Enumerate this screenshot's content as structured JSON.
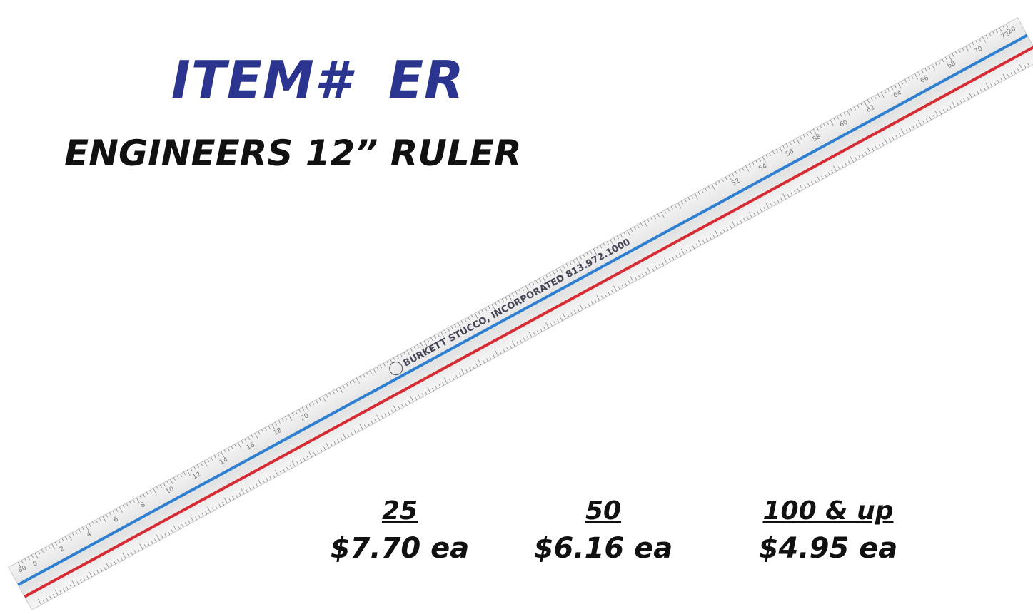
{
  "header": {
    "title": "ITEM#  ER",
    "subtitle": "ENGINEERS 12” RULER"
  },
  "ruler": {
    "imprint": "BURKETT STUCCO, INCORPORATED  813.972.1000",
    "end_labels": [
      "60",
      "20"
    ],
    "top_scale": [
      0,
      2,
      4,
      6,
      8,
      10,
      12,
      14,
      16,
      18,
      20,
      52,
      54,
      56,
      58,
      60,
      62,
      64,
      66,
      68,
      70,
      72
    ]
  },
  "pricing": [
    {
      "quantity": "25",
      "price": "$7.70 ea"
    },
    {
      "quantity": "50",
      "price": "$6.16 ea"
    },
    {
      "quantity": "100 & up",
      "price": "$4.95 ea"
    }
  ]
}
